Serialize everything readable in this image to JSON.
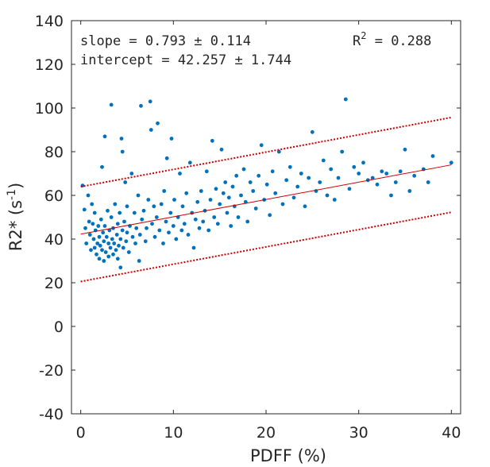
{
  "chart_data": {
    "type": "scatter",
    "xlabel": "PDFF (%)",
    "ylabel_main": "R2* (s",
    "ylabel_sup": "-1",
    "ylabel_close": ")",
    "xlim": [
      -1,
      41
    ],
    "ylim": [
      -40,
      140
    ],
    "xticks": [
      0,
      10,
      20,
      30,
      40
    ],
    "yticks": [
      -40,
      -20,
      0,
      20,
      40,
      60,
      80,
      100,
      120,
      140
    ],
    "grid": false,
    "annotations": {
      "slope": "slope = 0.793 ± 0.114",
      "intercept": "intercept = 42.257 ± 1.744",
      "r2_label": "R",
      "r2_sup": "2",
      "r2_value": " = 0.288"
    },
    "fit": {
      "slope": 0.793,
      "intercept": 42.257,
      "x_range": [
        0,
        40
      ]
    },
    "prediction_band": {
      "lower_offset": -21.7,
      "upper_offset": 21.7
    },
    "colors": {
      "points": "#0072BD",
      "fit": "#cc0000",
      "axes": "#262626"
    },
    "points": [
      [
        0.2,
        64.5
      ],
      [
        0.4,
        53.5
      ],
      [
        0.5,
        45
      ],
      [
        0.6,
        38
      ],
      [
        0.8,
        60
      ],
      [
        0.9,
        48
      ],
      [
        1.0,
        42
      ],
      [
        1.1,
        35
      ],
      [
        1.2,
        56
      ],
      [
        1.3,
        47
      ],
      [
        1.4,
        40
      ],
      [
        1.5,
        36
      ],
      [
        1.5,
        52
      ],
      [
        1.6,
        44
      ],
      [
        1.7,
        33
      ],
      [
        1.8,
        38
      ],
      [
        1.9,
        46
      ],
      [
        2.0,
        31
      ],
      [
        2.0,
        41
      ],
      [
        2.1,
        37
      ],
      [
        2.2,
        49
      ],
      [
        2.3,
        35
      ],
      [
        2.3,
        73
      ],
      [
        2.4,
        43
      ],
      [
        2.5,
        30
      ],
      [
        2.5,
        39
      ],
      [
        2.6,
        46
      ],
      [
        2.6,
        87
      ],
      [
        2.7,
        34
      ],
      [
        2.8,
        41
      ],
      [
        2.9,
        53
      ],
      [
        3.0,
        32
      ],
      [
        3.0,
        38
      ],
      [
        3.1,
        44
      ],
      [
        3.2,
        36
      ],
      [
        3.3,
        50
      ],
      [
        3.3,
        101.5
      ],
      [
        3.4,
        40
      ],
      [
        3.5,
        33
      ],
      [
        3.5,
        45
      ],
      [
        3.6,
        38
      ],
      [
        3.7,
        56
      ],
      [
        3.8,
        35
      ],
      [
        3.9,
        42
      ],
      [
        4.0,
        47
      ],
      [
        4.0,
        31
      ],
      [
        4.1,
        37
      ],
      [
        4.2,
        52
      ],
      [
        4.3,
        27
      ],
      [
        4.3,
        40
      ],
      [
        4.4,
        86
      ],
      [
        4.5,
        80
      ],
      [
        4.5,
        44
      ],
      [
        4.6,
        36
      ],
      [
        4.7,
        48
      ],
      [
        4.8,
        66
      ],
      [
        4.9,
        39
      ],
      [
        5.0,
        55
      ],
      [
        5.0,
        43
      ],
      [
        5.2,
        34
      ],
      [
        5.3,
        46
      ],
      [
        5.5,
        70
      ],
      [
        5.6,
        41
      ],
      [
        5.8,
        52
      ],
      [
        5.9,
        38
      ],
      [
        6.0,
        45
      ],
      [
        6.2,
        60
      ],
      [
        6.3,
        30
      ],
      [
        6.4,
        42
      ],
      [
        6.5,
        101
      ],
      [
        6.6,
        49
      ],
      [
        6.8,
        53
      ],
      [
        7.0,
        39
      ],
      [
        7.1,
        45
      ],
      [
        7.3,
        58
      ],
      [
        7.5,
        103
      ],
      [
        7.6,
        90
      ],
      [
        7.7,
        47
      ],
      [
        7.9,
        55
      ],
      [
        8.0,
        41
      ],
      [
        8.2,
        50
      ],
      [
        8.3,
        93
      ],
      [
        8.5,
        44
      ],
      [
        8.7,
        56
      ],
      [
        8.9,
        38
      ],
      [
        9.0,
        62
      ],
      [
        9.2,
        48
      ],
      [
        9.3,
        77
      ],
      [
        9.5,
        43
      ],
      [
        9.7,
        52
      ],
      [
        9.8,
        86
      ],
      [
        10.0,
        46
      ],
      [
        10.1,
        58
      ],
      [
        10.3,
        40
      ],
      [
        10.5,
        50
      ],
      [
        10.7,
        70
      ],
      [
        10.9,
        44
      ],
      [
        11.0,
        55
      ],
      [
        11.2,
        47
      ],
      [
        11.4,
        61
      ],
      [
        11.6,
        42
      ],
      [
        11.8,
        75
      ],
      [
        12.0,
        52
      ],
      [
        12.2,
        36
      ],
      [
        12.4,
        49
      ],
      [
        12.6,
        57
      ],
      [
        12.8,
        45
      ],
      [
        13.0,
        62
      ],
      [
        13.2,
        48
      ],
      [
        13.4,
        53
      ],
      [
        13.6,
        71
      ],
      [
        13.8,
        44
      ],
      [
        14.0,
        58
      ],
      [
        14.2,
        85
      ],
      [
        14.4,
        50
      ],
      [
        14.6,
        63
      ],
      [
        14.8,
        47
      ],
      [
        15.0,
        56
      ],
      [
        15.2,
        81
      ],
      [
        15.4,
        61
      ],
      [
        15.6,
        66
      ],
      [
        15.8,
        52
      ],
      [
        16.0,
        59
      ],
      [
        16.2,
        46
      ],
      [
        16.4,
        64
      ],
      [
        16.6,
        55
      ],
      [
        16.8,
        69
      ],
      [
        17.0,
        50
      ],
      [
        17.3,
        60
      ],
      [
        17.6,
        72
      ],
      [
        17.8,
        57
      ],
      [
        18.0,
        48
      ],
      [
        18.3,
        66
      ],
      [
        18.6,
        62
      ],
      [
        18.9,
        54
      ],
      [
        19.2,
        69
      ],
      [
        19.5,
        83
      ],
      [
        19.8,
        58
      ],
      [
        20.1,
        65
      ],
      [
        20.4,
        51
      ],
      [
        20.7,
        71
      ],
      [
        21.0,
        61
      ],
      [
        21.4,
        80
      ],
      [
        21.8,
        56
      ],
      [
        22.2,
        67
      ],
      [
        22.6,
        73
      ],
      [
        23.0,
        59
      ],
      [
        23.4,
        64
      ],
      [
        23.8,
        70
      ],
      [
        24.2,
        55
      ],
      [
        24.6,
        68
      ],
      [
        25.0,
        89
      ],
      [
        25.4,
        62
      ],
      [
        25.8,
        66
      ],
      [
        26.2,
        76
      ],
      [
        26.6,
        60
      ],
      [
        27.0,
        72
      ],
      [
        27.4,
        58
      ],
      [
        27.8,
        68
      ],
      [
        28.2,
        80
      ],
      [
        28.6,
        104
      ],
      [
        29.0,
        63
      ],
      [
        29.5,
        73
      ],
      [
        30.0,
        70
      ],
      [
        30.5,
        75
      ],
      [
        31.0,
        67
      ],
      [
        31.5,
        68
      ],
      [
        32.0,
        65
      ],
      [
        32.5,
        71
      ],
      [
        33.0,
        70
      ],
      [
        33.5,
        60
      ],
      [
        34.0,
        66
      ],
      [
        34.5,
        71
      ],
      [
        35.0,
        81
      ],
      [
        35.5,
        62
      ],
      [
        36.0,
        69
      ],
      [
        37.0,
        72
      ],
      [
        37.5,
        66
      ],
      [
        38.0,
        78
      ],
      [
        40.0,
        75
      ]
    ]
  }
}
